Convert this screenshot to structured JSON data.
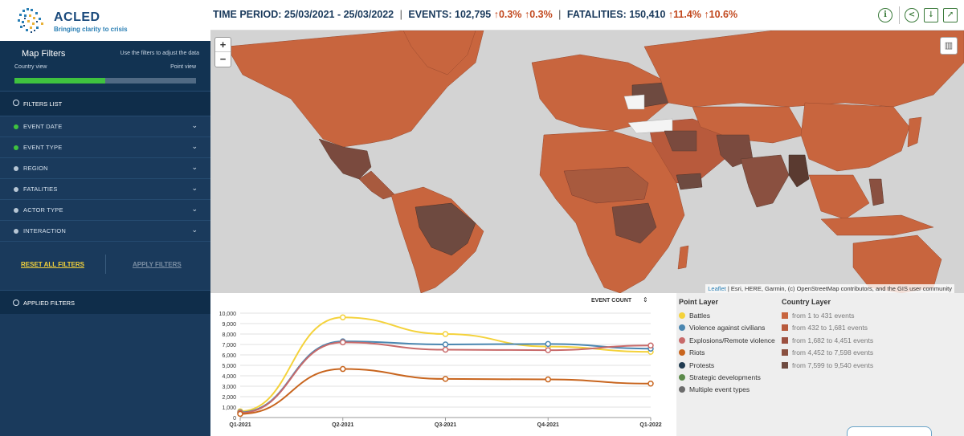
{
  "brand": {
    "name": "ACLED",
    "tagline": "Bringing clarity to crisis"
  },
  "sidebar": {
    "map_filters_title": "Map Filters",
    "map_filters_help": "Use the filters to adjust the data",
    "country_view": "Country view",
    "point_view": "Point view",
    "view_slider_fraction": 0.5,
    "filters_list": "FILTERS LIST",
    "filters": [
      {
        "label": "EVENT DATE",
        "active": true
      },
      {
        "label": "EVENT TYPE",
        "active": true
      },
      {
        "label": "REGION",
        "active": false
      },
      {
        "label": "FATALITIES",
        "active": false
      },
      {
        "label": "ACTOR TYPE",
        "active": false
      },
      {
        "label": "INTERACTION",
        "active": false
      }
    ],
    "reset_label": "RESET ALL FILTERS",
    "apply_label": "APPLY FILTERS",
    "applied_filters": "APPLIED FILTERS"
  },
  "stats": {
    "time_period_label": "TIME PERIOD:",
    "time_period_value": "25/03/2021 - 25/03/2022",
    "events_label": "EVENTS:",
    "events_value": "102,795",
    "events_change1": "0.3%",
    "events_change2": "0.3%",
    "fatalities_label": "FATALITIES:",
    "fatalities_value": "150,410",
    "fatalities_change1": "11.4%",
    "fatalities_change2": "10.6%"
  },
  "map": {
    "zoom_in": "+",
    "zoom_out": "−",
    "attribution_leaflet": "Leaflet",
    "attribution_rest": " | Esri, HERE, Garmin, (c) OpenStreetMap contributors, and the GIS user community"
  },
  "chart_data": {
    "type": "line",
    "selector_label": "EVENT COUNT",
    "categories": [
      "Q1-2021",
      "Q2-2021",
      "Q3-2021",
      "Q4-2021",
      "Q1-2022"
    ],
    "yticks": [
      "0",
      "1,000",
      "2,000",
      "3,000",
      "4,000",
      "5,000",
      "6,000",
      "7,000",
      "8,000",
      "9,000",
      "10,000"
    ],
    "ylim": [
      0,
      10000
    ],
    "series": [
      {
        "name": "Battles",
        "color": "#f4d23b",
        "values": [
          600,
          9600,
          8000,
          6800,
          6300
        ]
      },
      {
        "name": "Violence against civilians",
        "color": "#4a86b0",
        "values": [
          500,
          7300,
          7000,
          7050,
          6600
        ]
      },
      {
        "name": "Explosions/Remote violence",
        "color": "#c86a6a",
        "values": [
          450,
          7200,
          6500,
          6450,
          6900
        ]
      },
      {
        "name": "Riots",
        "color": "#c8651e",
        "values": [
          350,
          4650,
          3700,
          3650,
          3250
        ]
      }
    ]
  },
  "legend": {
    "point_title": "Point Layer",
    "point_items": [
      {
        "label": "Battles",
        "color": "#f4d23b"
      },
      {
        "label": "Violence against civilians",
        "color": "#4a86b0"
      },
      {
        "label": "Explosions/Remote violence",
        "color": "#c86a6a"
      },
      {
        "label": "Riots",
        "color": "#c8651e"
      },
      {
        "label": "Protests",
        "color": "#1f3a50"
      },
      {
        "label": "Strategic developments",
        "color": "#5b8a4a"
      },
      {
        "label": "Multiple event types",
        "color": "#6b6b6b"
      }
    ],
    "country_title": "Country Layer",
    "country_items": [
      {
        "label": "from 1 to 431 events",
        "color": "#c8653e"
      },
      {
        "label": "from 432 to 1,681 events",
        "color": "#b85a3c"
      },
      {
        "label": "from 1,682 to 4,451 events",
        "color": "#9c5040"
      },
      {
        "label": "from 4,452 to 7,598 events",
        "color": "#8a5040"
      },
      {
        "label": "from 7,599 to 9,540 events",
        "color": "#6e4a40"
      }
    ]
  }
}
